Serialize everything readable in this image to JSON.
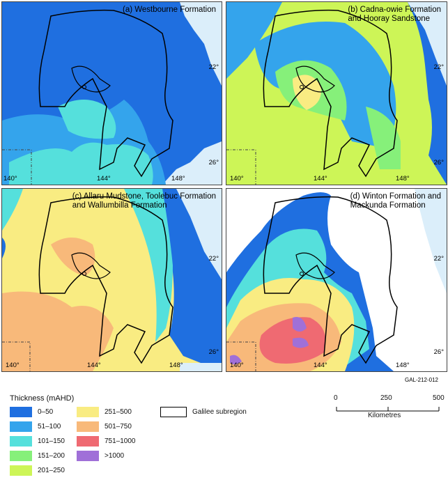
{
  "figure_code": "GAL-212-012",
  "colors": {
    "band_0_50": "#1f6fe0",
    "band_51_100": "#34a4ec",
    "band_101_150": "#55e0dc",
    "band_151_200": "#86f07a",
    "band_201_250": "#cdf557",
    "band_251_500": "#f9ec82",
    "band_501_750": "#f8b97a",
    "band_751_1000": "#ef6a72",
    "band_over_1000": "#a070d8",
    "ocean": "#dbeefa",
    "outline": "#000000"
  },
  "panels": [
    {
      "title": "(a) Westbourne Formation",
      "lat_labels": [
        "22°",
        "26°"
      ],
      "lon_labels": [
        "140°",
        "144°",
        "148°"
      ]
    },
    {
      "title": "(b) Cadna-owie Formation\nand Hooray Sandstone",
      "lat_labels": [
        "22°",
        "26°"
      ],
      "lon_labels": [
        "140°",
        "144°",
        "148°"
      ]
    },
    {
      "title": "(c) Allaru Mudstone, Toolebuc Formation\nand Wallumbilla Formation",
      "lat_labels": [
        "22°",
        "26°"
      ],
      "lon_labels": [
        "140°",
        "144°",
        "148°"
      ]
    },
    {
      "title": "(d) Winton Formation and\nMackunda Formation",
      "lat_labels": [
        "22°",
        "26°"
      ],
      "lon_labels": [
        "140°",
        "144°",
        "148°"
      ]
    }
  ],
  "legend": {
    "title": "Thickness (mAHD)",
    "items": [
      {
        "label": "0–50",
        "color": "#1f6fe0"
      },
      {
        "label": "51–100",
        "color": "#34a4ec"
      },
      {
        "label": "101–150",
        "color": "#55e0dc"
      },
      {
        "label": "151–200",
        "color": "#86f07a"
      },
      {
        "label": "201–250",
        "color": "#cdf557"
      },
      {
        "label": "251–500",
        "color": "#f9ec82"
      },
      {
        "label": "501–750",
        "color": "#f8b97a"
      },
      {
        "label": "751–1000",
        "color": "#ef6a72"
      },
      {
        "label": ">1000",
        "color": "#a070d8"
      }
    ],
    "boundary_label": "Galilee subregion"
  },
  "scale_bar": {
    "ticks": [
      "0",
      "250",
      "500"
    ],
    "unit": "Kilometres"
  }
}
